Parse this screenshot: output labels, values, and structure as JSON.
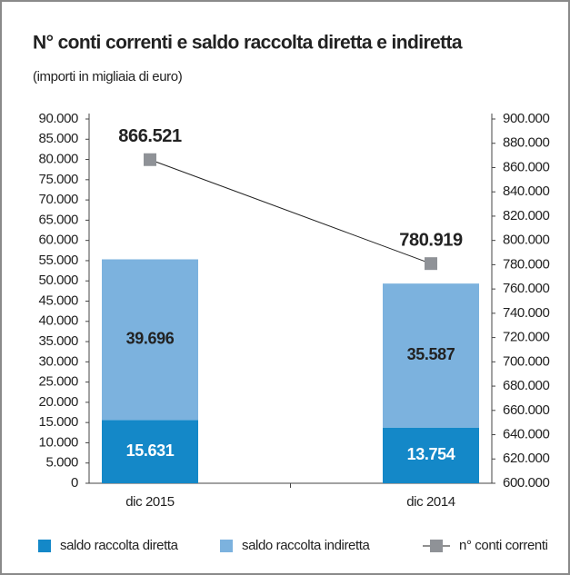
{
  "chart_data": {
    "type": "bar",
    "title": "N° conti correnti e saldo raccolta diretta e indiretta",
    "subtitle": "(importi in migliaia di euro)",
    "categories": [
      "dic 2015",
      "dic 2014"
    ],
    "series": [
      {
        "name": "saldo raccolta diretta",
        "type": "bar",
        "color": "#1488c8",
        "values": [
          15631,
          13754
        ],
        "value_labels": [
          "15.631",
          "13.754"
        ]
      },
      {
        "name": "saldo raccolta indiretta",
        "type": "bar",
        "color": "#7cb2de",
        "values": [
          39696,
          35587
        ],
        "value_labels": [
          "39.696",
          "35.587"
        ]
      },
      {
        "name": "n° conti correnti",
        "type": "line",
        "axis": "y2",
        "color": "#8f9297",
        "values": [
          866521,
          780919
        ],
        "value_labels": [
          "866.521",
          "780.919"
        ]
      }
    ],
    "stacked": true,
    "ylim": [
      0,
      90000
    ],
    "yticks": [
      0,
      {
        "value": 5000,
        "label": "5.000"
      },
      {
        "value": 10000,
        "label": "10.000"
      },
      {
        "value": 15000,
        "label": "15.000"
      },
      {
        "value": 20000,
        "label": "20.000"
      },
      {
        "value": 25000,
        "label": "25.000"
      },
      {
        "value": 30000,
        "label": "30.000"
      },
      {
        "value": 35000,
        "label": "35.000"
      },
      {
        "value": 40000,
        "label": "40.000"
      },
      {
        "value": 45000,
        "label": "45.000"
      },
      {
        "value": 50000,
        "label": "50.000"
      },
      {
        "value": 55000,
        "label": "55.000"
      },
      {
        "value": 60000,
        "label": "60.000"
      },
      {
        "value": 65000,
        "label": "65.000"
      },
      {
        "value": 70000,
        "label": "70.000"
      },
      {
        "value": 75000,
        "label": "75.000"
      },
      {
        "value": 80000,
        "label": "80.000"
      },
      {
        "value": 85000,
        "label": "85.000"
      },
      {
        "value": 90000,
        "label": "90.000"
      }
    ],
    "y2lim": [
      600000,
      900000
    ],
    "y2ticks": [
      {
        "value": 600000,
        "label": "600.000"
      },
      {
        "value": 620000,
        "label": "620.000"
      },
      {
        "value": 640000,
        "label": "640.000"
      },
      {
        "value": 660000,
        "label": "660.000"
      },
      {
        "value": 680000,
        "label": "680.000"
      },
      {
        "value": 700000,
        "label": "700.000"
      },
      {
        "value": 720000,
        "label": "720.000"
      },
      {
        "value": 740000,
        "label": "740.000"
      },
      {
        "value": 760000,
        "label": "760.000"
      },
      {
        "value": 780000,
        "label": "780.000"
      },
      {
        "value": 800000,
        "label": "800.000"
      },
      {
        "value": 820000,
        "label": "820.000"
      },
      {
        "value": 840000,
        "label": "840.000"
      },
      {
        "value": 860000,
        "label": "860.000"
      },
      {
        "value": 880000,
        "label": "880.000"
      },
      {
        "value": 900000,
        "label": "900.000"
      }
    ],
    "grid": false,
    "legend": "bottom"
  }
}
